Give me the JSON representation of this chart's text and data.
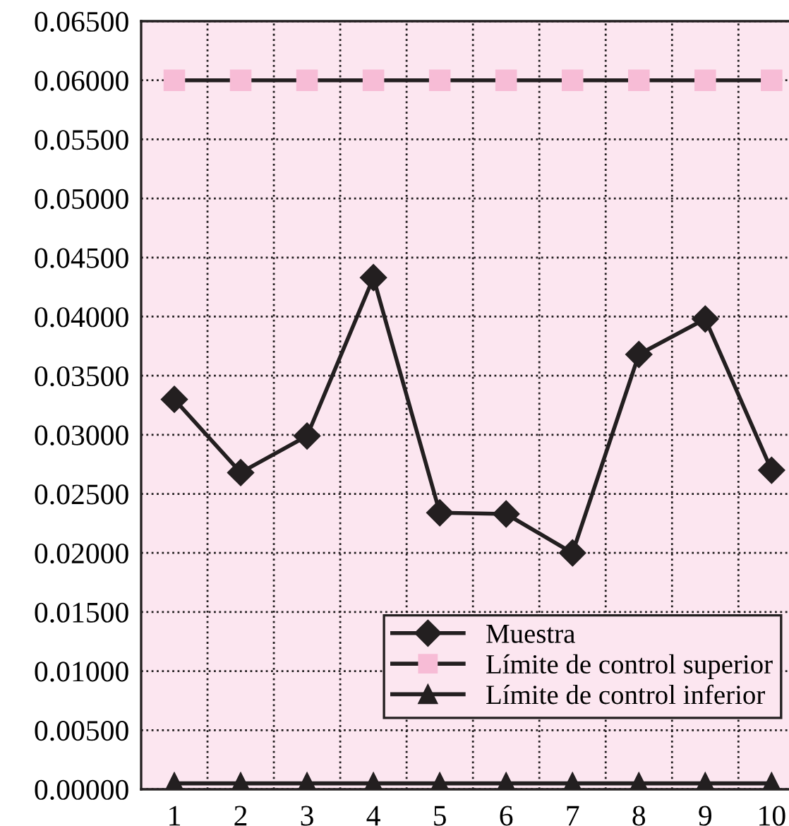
{
  "chart_data": {
    "type": "line",
    "categories": [
      "1",
      "2",
      "3",
      "4",
      "5",
      "6",
      "7",
      "8",
      "9",
      "10"
    ],
    "series": [
      {
        "name": "Muestra",
        "color": "#231f20",
        "marker": "diamond",
        "values": [
          0.033,
          0.0268,
          0.0299,
          0.0433,
          0.0234,
          0.0233,
          0.02,
          0.0368,
          0.0398,
          0.027
        ]
      },
      {
        "name": "Límite de control superior",
        "color": "#f7bcd6",
        "marker": "square",
        "values": [
          0.06,
          0.06,
          0.06,
          0.06,
          0.06,
          0.06,
          0.06,
          0.06,
          0.06,
          0.06
        ]
      },
      {
        "name": "Límite de control inferior",
        "color": "#231f20",
        "marker": "triangle",
        "values": [
          0.0005,
          0.0005,
          0.0005,
          0.0005,
          0.0005,
          0.0005,
          0.0005,
          0.0005,
          0.0005,
          0.0005
        ]
      }
    ],
    "ylim": [
      0,
      0.065
    ],
    "yticks": [
      {
        "value": 0,
        "label": "0.00000"
      },
      {
        "value": 0.005,
        "label": "0.00500"
      },
      {
        "value": 0.01,
        "label": "0.01000"
      },
      {
        "value": 0.015,
        "label": "0.01500"
      },
      {
        "value": 0.02,
        "label": "0.02000"
      },
      {
        "value": 0.025,
        "label": "0.02500"
      },
      {
        "value": 0.03,
        "label": "0.03000"
      },
      {
        "value": 0.035,
        "label": "0.03500"
      },
      {
        "value": 0.04,
        "label": "0.04000"
      },
      {
        "value": 0.045,
        "label": "0.04500"
      },
      {
        "value": 0.05,
        "label": "0.05000"
      },
      {
        "value": 0.055,
        "label": "0.05500"
      },
      {
        "value": 0.06,
        "label": "0.06000"
      },
      {
        "value": 0.065,
        "label": "0.06500"
      }
    ],
    "grid": true,
    "legend": "bottom right",
    "line_style": "solid"
  }
}
